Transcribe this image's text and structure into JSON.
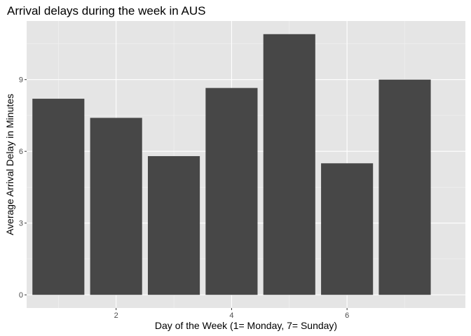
{
  "chart_data": {
    "type": "bar",
    "title": "Arrival delays during the week in AUS",
    "xlabel": "Day of the Week (1= Monday, 7= Sunday)",
    "ylabel": "Average Arrival Delay in Minutes",
    "categories": [
      1,
      2,
      3,
      4,
      5,
      6,
      7
    ],
    "values": [
      8.2,
      7.4,
      5.8,
      8.65,
      10.9,
      5.5,
      9.0
    ],
    "xticks": [
      2,
      4,
      6
    ],
    "yticks": [
      0,
      3,
      6,
      9
    ],
    "xlim": [
      0.45,
      8.05
    ],
    "ylim": [
      -0.55,
      11.45
    ],
    "grid": true,
    "colors": {
      "bar": "#474747",
      "panel": "#e5e5e5",
      "grid_major": "#ffffff",
      "grid_minor": "#f2f2f2"
    }
  }
}
